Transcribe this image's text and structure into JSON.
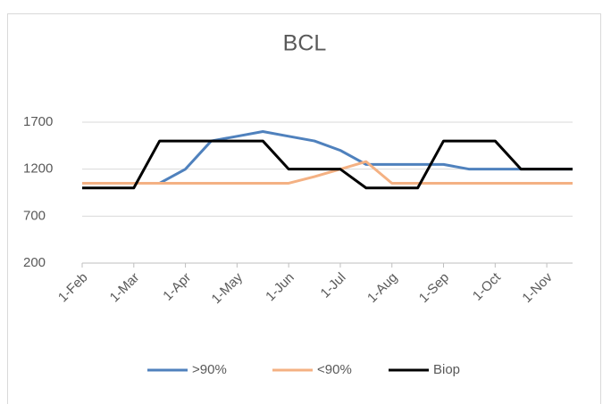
{
  "chart_data": {
    "type": "line",
    "title": "BCL",
    "categories": [
      "1-Feb",
      null,
      "1-Mar",
      null,
      "1-Apr",
      null,
      "1-May",
      null,
      "1-Jun",
      null,
      "1-Jul",
      null,
      "1-Aug",
      null,
      "1-Sep",
      null,
      "1-Oct",
      null,
      "1-Nov",
      null
    ],
    "series": [
      {
        "name": ">90%",
        "color": "#4f81bd",
        "values": [
          1050,
          1050,
          1050,
          1050,
          1200,
          1500,
          1550,
          1600,
          1550,
          1500,
          1400,
          1250,
          1250,
          1250,
          1250,
          1200,
          1200,
          1200,
          1200,
          1200
        ]
      },
      {
        "name": "<90%",
        "color": "#f4b183",
        "values": [
          1050,
          1050,
          1050,
          1050,
          1050,
          1050,
          1050,
          1050,
          1050,
          1120,
          1200,
          1280,
          1050,
          1050,
          1050,
          1050,
          1050,
          1050,
          1050,
          1050
        ]
      },
      {
        "name": "Biop",
        "color": "#000000",
        "values": [
          1000,
          1000,
          1000,
          1500,
          1500,
          1500,
          1500,
          1500,
          1200,
          1200,
          1200,
          1000,
          1000,
          1000,
          1500,
          1500,
          1500,
          1200,
          1200,
          1200
        ]
      }
    ],
    "ylim": [
      200,
      1700
    ],
    "yticks": [
      200,
      700,
      1200,
      1700
    ],
    "grid": true,
    "legend": "bottom"
  }
}
